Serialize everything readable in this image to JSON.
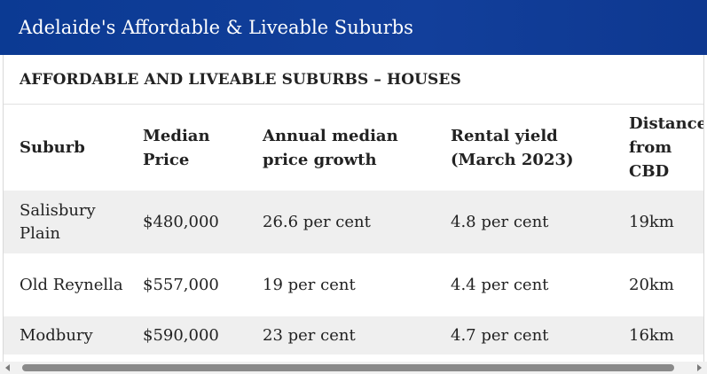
{
  "header": {
    "title": "Adelaide's Affordable & Liveable Suburbs"
  },
  "table": {
    "caption": "AFFORDABLE AND LIVEABLE SUBURBS – HOUSES",
    "columns": [
      "Suburb",
      "Median Price",
      "Annual median price growth",
      "Rental yield (March 2023)",
      "Distance from CBD"
    ],
    "rows": [
      [
        "Salisbury Plain",
        "$480,000",
        "26.6 per cent",
        "4.8 per cent",
        "19km"
      ],
      [
        "Old Reynella",
        "$557,000",
        "19 per cent",
        "4.4 per cent",
        "20km"
      ],
      [
        "Modbury",
        "$590,000",
        "23 per cent",
        "4.7 per cent",
        "16km"
      ]
    ]
  },
  "colors": {
    "header_bg": "#0b3a93",
    "row_alt_bg": "#efefef"
  },
  "icons": {
    "scroll_left": "caret-left-icon",
    "scroll_right": "caret-right-icon"
  }
}
